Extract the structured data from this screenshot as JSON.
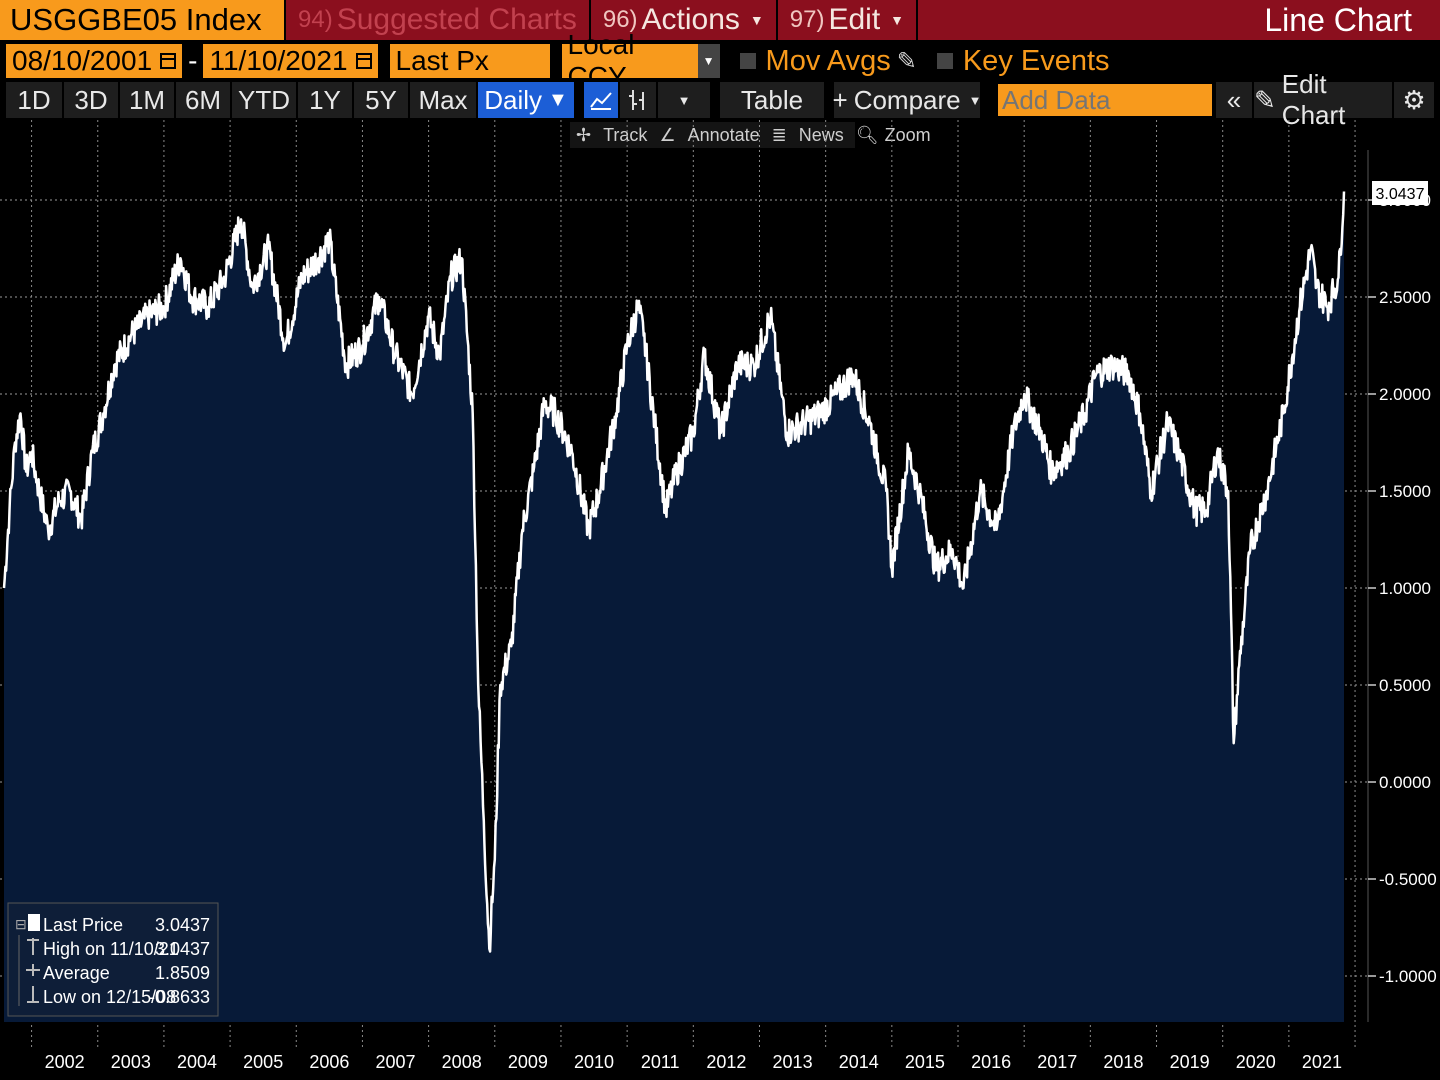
{
  "header": {
    "ticker": "USGGBE05 Index",
    "menu": [
      {
        "num": "94)",
        "label": "Suggested Charts",
        "dim": true,
        "caret": false
      },
      {
        "num": "96)",
        "label": "Actions",
        "dim": false,
        "caret": true
      },
      {
        "num": "97)",
        "label": "Edit",
        "dim": false,
        "caret": true
      }
    ],
    "chart_type": "Line Chart"
  },
  "options": {
    "start_date": "08/10/2001",
    "end_date": "11/10/2021",
    "field": "Last Px",
    "currency": "Local CCY",
    "mov_avgs": "Mov Avgs",
    "key_events": "Key Events"
  },
  "toolbar": {
    "periods": [
      "1D",
      "3D",
      "1M",
      "6M",
      "YTD",
      "1Y",
      "5Y",
      "Max"
    ],
    "frequency": "Daily",
    "table": "Table",
    "compare": "Compare",
    "add_data_placeholder": "Add Data",
    "edit_chart": "Edit Chart"
  },
  "subtools": [
    "Track",
    "Annotate",
    "News",
    "Zoom"
  ],
  "legend": {
    "rows": [
      {
        "label": "Last Price",
        "value": "3.0437"
      },
      {
        "label": "High on 11/10/21",
        "value": "3.0437"
      },
      {
        "label": "Average",
        "value": "1.8509"
      },
      {
        "label": "Low on 12/15/08",
        "value": "-0.8633"
      }
    ]
  },
  "chart_data": {
    "type": "area",
    "title": "",
    "xlabel": "",
    "ylabel": "",
    "ylim": [
      -1.25,
      3.3
    ],
    "y_ticks": [
      "3.0000",
      "2.5000",
      "2.0000",
      "1.5000",
      "1.0000",
      "0.5000",
      "0.0000",
      "-0.5000",
      "-1.0000"
    ],
    "x_ticks": [
      "2002",
      "2003",
      "2004",
      "2005",
      "2006",
      "2007",
      "2008",
      "2009",
      "2010",
      "2011",
      "2012",
      "2013",
      "2014",
      "2015",
      "2016",
      "2017",
      "2018",
      "2019",
      "2020",
      "2021"
    ],
    "last_price_label": "3.0437",
    "series": [
      {
        "x": [
          "2001-08",
          "2001-09",
          "2001-10",
          "2001-11",
          "2001-12",
          "2002-01",
          "2002-02",
          "2002-04",
          "2002-06",
          "2002-08",
          "2002-10",
          "2002-12",
          "2003-02",
          "2003-04",
          "2003-07",
          "2003-10",
          "2004-01",
          "2004-04",
          "2004-06",
          "2004-09",
          "2004-12",
          "2005-03",
          "2005-05",
          "2005-08",
          "2005-11",
          "2006-02",
          "2006-05",
          "2006-07",
          "2006-10",
          "2007-01",
          "2007-04",
          "2007-07",
          "2007-10",
          "2008-01",
          "2008-03",
          "2008-05",
          "2008-07",
          "2008-09",
          "2008-10",
          "2008-11",
          "2008-12",
          "2009-01",
          "2009-02",
          "2009-04",
          "2009-06",
          "2009-08",
          "2009-10",
          "2009-12",
          "2010-03",
          "2010-06",
          "2010-08",
          "2010-11",
          "2011-01",
          "2011-03",
          "2011-04",
          "2011-06",
          "2011-08",
          "2011-10",
          "2012-01",
          "2012-03",
          "2012-06",
          "2012-09",
          "2012-12",
          "2013-03",
          "2013-05",
          "2013-06",
          "2013-09",
          "2013-12",
          "2014-03",
          "2014-06",
          "2014-09",
          "2014-12",
          "2015-01",
          "2015-04",
          "2015-06",
          "2015-09",
          "2015-12",
          "2016-02",
          "2016-05",
          "2016-08",
          "2016-11",
          "2017-01",
          "2017-04",
          "2017-06",
          "2017-09",
          "2017-12",
          "2018-02",
          "2018-05",
          "2018-08",
          "2018-10",
          "2018-12",
          "2019-03",
          "2019-05",
          "2019-08",
          "2019-10",
          "2019-12",
          "2020-02",
          "2020-03",
          "2020-04",
          "2020-06",
          "2020-09",
          "2020-12",
          "2021-03",
          "2021-05",
          "2021-06",
          "2021-08",
          "2021-10",
          "2021-11"
        ],
        "values": [
          1.0,
          1.4,
          1.75,
          1.9,
          1.6,
          1.7,
          1.55,
          1.3,
          1.45,
          1.5,
          1.35,
          1.7,
          1.9,
          2.15,
          2.3,
          2.4,
          2.45,
          2.7,
          2.5,
          2.45,
          2.6,
          2.9,
          2.55,
          2.75,
          2.25,
          2.6,
          2.7,
          2.8,
          2.15,
          2.25,
          2.5,
          2.2,
          2.0,
          2.4,
          2.2,
          2.6,
          2.7,
          1.9,
          0.5,
          -0.2,
          -0.86,
          -0.4,
          0.5,
          0.7,
          1.3,
          1.6,
          1.95,
          1.9,
          1.7,
          1.3,
          1.5,
          1.9,
          2.25,
          2.45,
          2.3,
          1.85,
          1.4,
          1.6,
          1.8,
          2.2,
          1.8,
          2.15,
          2.15,
          2.4,
          2.0,
          1.8,
          1.85,
          1.9,
          2.0,
          2.1,
          1.85,
          1.5,
          1.1,
          1.7,
          1.5,
          1.1,
          1.2,
          1.0,
          1.5,
          1.3,
          1.8,
          2.0,
          1.8,
          1.6,
          1.7,
          1.9,
          2.1,
          2.15,
          2.1,
          1.9,
          1.5,
          1.85,
          1.7,
          1.4,
          1.4,
          1.7,
          1.5,
          0.2,
          0.6,
          1.2,
          1.5,
          1.9,
          2.45,
          2.75,
          2.55,
          2.45,
          2.6,
          3.0437
        ]
      }
    ]
  }
}
